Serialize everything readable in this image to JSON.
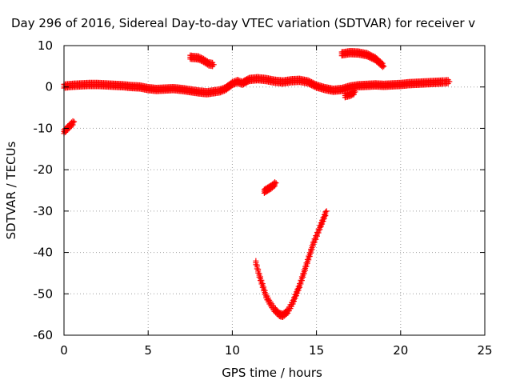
{
  "chart_data": {
    "type": "scatter",
    "title": "Day 296 of 2016, Sidereal Day-to-day VTEC variation (SDTVAR) for receiver v",
    "xlabel": "GPS time / hours",
    "ylabel": "SDTVAR / TECUs",
    "xlim": [
      0,
      25
    ],
    "ylim": [
      -60,
      10
    ],
    "xticks": [
      0,
      5,
      10,
      15,
      20,
      25
    ],
    "yticks": [
      10,
      0,
      -10,
      -20,
      -30,
      -40,
      -50,
      -60
    ],
    "grid": true,
    "marker": "plus",
    "color": "#ff0000",
    "series": [
      {
        "segments": [
          [
            [
              0.0,
              0.2
            ],
            [
              0.5,
              0.4
            ],
            [
              1.0,
              0.5
            ],
            [
              1.5,
              0.6
            ],
            [
              2.0,
              0.6
            ],
            [
              2.5,
              0.5
            ],
            [
              3.0,
              0.4
            ],
            [
              3.5,
              0.3
            ],
            [
              4.0,
              0.1
            ],
            [
              4.5,
              0.0
            ],
            [
              5.0,
              -0.4
            ],
            [
              5.5,
              -0.6
            ],
            [
              6.0,
              -0.5
            ],
            [
              6.5,
              -0.4
            ],
            [
              7.0,
              -0.6
            ],
            [
              7.5,
              -0.9
            ],
            [
              8.0,
              -1.2
            ],
            [
              8.5,
              -1.4
            ],
            [
              9.0,
              -1.1
            ],
            [
              9.3,
              -0.9
            ],
            [
              9.6,
              -0.4
            ],
            [
              10.0,
              0.8
            ],
            [
              10.3,
              1.3
            ],
            [
              10.6,
              0.9
            ],
            [
              11.0,
              1.8
            ],
            [
              11.5,
              2.0
            ],
            [
              12.0,
              1.8
            ],
            [
              12.5,
              1.4
            ],
            [
              13.0,
              1.2
            ],
            [
              13.5,
              1.5
            ],
            [
              14.0,
              1.6
            ],
            [
              14.5,
              1.2
            ],
            [
              15.0,
              0.2
            ],
            [
              15.5,
              -0.4
            ],
            [
              16.0,
              -0.8
            ],
            [
              16.5,
              -0.6
            ],
            [
              17.0,
              0.0
            ],
            [
              17.5,
              0.3
            ],
            [
              18.0,
              0.4
            ],
            [
              18.5,
              0.5
            ],
            [
              19.0,
              0.4
            ],
            [
              19.5,
              0.5
            ],
            [
              20.0,
              0.6
            ],
            [
              20.5,
              0.8
            ],
            [
              21.0,
              0.9
            ],
            [
              21.5,
              1.0
            ],
            [
              22.0,
              1.1
            ],
            [
              22.5,
              1.2
            ],
            [
              22.9,
              1.3
            ]
          ],
          [
            [
              0.0,
              -10.8
            ],
            [
              0.3,
              -9.6
            ],
            [
              0.6,
              -8.4
            ]
          ],
          [
            [
              7.5,
              7.2
            ],
            [
              8.0,
              7.0
            ],
            [
              8.3,
              6.4
            ],
            [
              8.6,
              5.6
            ],
            [
              8.9,
              5.4
            ]
          ],
          [
            [
              16.7,
              -2.1
            ],
            [
              17.0,
              -1.8
            ],
            [
              17.3,
              -1.2
            ]
          ],
          [
            [
              16.5,
              8.0
            ],
            [
              17.0,
              8.3
            ],
            [
              17.5,
              8.2
            ],
            [
              18.0,
              7.8
            ],
            [
              18.5,
              6.8
            ],
            [
              19.0,
              5.0
            ]
          ],
          [
            [
              11.9,
              -25.2
            ],
            [
              12.3,
              -24.2
            ],
            [
              12.6,
              -23.2
            ]
          ],
          [
            [
              11.4,
              -42.5
            ],
            [
              11.6,
              -45.5
            ],
            [
              11.8,
              -48.0
            ],
            [
              12.0,
              -50.5
            ],
            [
              12.2,
              -52.0
            ],
            [
              12.5,
              -53.8
            ],
            [
              12.8,
              -55.0
            ],
            [
              13.0,
              -55.2
            ],
            [
              13.3,
              -54.2
            ],
            [
              13.6,
              -52.0
            ],
            [
              14.0,
              -48.0
            ],
            [
              14.4,
              -43.0
            ],
            [
              14.8,
              -38.0
            ],
            [
              15.2,
              -34.0
            ],
            [
              15.6,
              -30.0
            ]
          ]
        ]
      }
    ]
  }
}
